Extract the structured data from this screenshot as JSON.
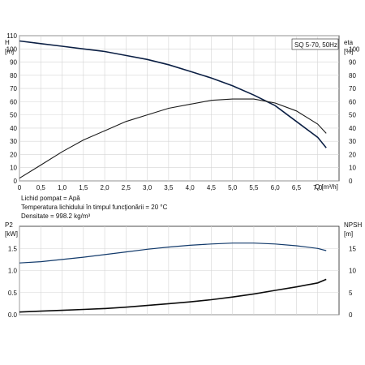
{
  "chart_data": [
    {
      "type": "line",
      "title": "SQ 5-70, 50Hz",
      "xlabel": "Q [m³/h]",
      "ylabel_left": [
        "H",
        "[m]"
      ],
      "ylabel_right": [
        "eta",
        "[%]"
      ],
      "xlim": [
        0,
        7.5
      ],
      "ylim_left": [
        0,
        110
      ],
      "ylim_right": [
        0,
        110
      ],
      "x_ticks": [
        "0",
        "0,5",
        "1,0",
        "1,5",
        "2,0",
        "2,5",
        "3,0",
        "3,5",
        "4,0",
        "4,5",
        "5,0",
        "5,5",
        "6,0",
        "6,5",
        "7,0"
      ],
      "y_ticks_left": [
        "0",
        "10",
        "20",
        "30",
        "40",
        "50",
        "60",
        "70",
        "80",
        "90",
        "100",
        "110"
      ],
      "y_ticks_right": [
        "0",
        "10",
        "20",
        "30",
        "40",
        "50",
        "60",
        "70",
        "80",
        "90",
        "100"
      ],
      "grid": true,
      "series": [
        {
          "name": "H",
          "axis": "left",
          "x": [
            0,
            0.5,
            1,
            1.5,
            2,
            2.5,
            3,
            3.5,
            4,
            4.5,
            5,
            5.5,
            6,
            6.5,
            7,
            7.2
          ],
          "values": [
            106,
            104,
            102,
            100,
            98,
            95,
            92,
            88,
            83,
            78,
            72,
            65,
            57,
            45,
            33,
            25
          ]
        },
        {
          "name": "eta",
          "axis": "right",
          "x": [
            0,
            0.5,
            1,
            1.5,
            2,
            2.5,
            3,
            3.5,
            4,
            4.5,
            5,
            5.5,
            6,
            6.5,
            7,
            7.2
          ],
          "values": [
            2,
            12,
            22,
            31,
            38,
            45,
            50,
            55,
            58,
            61,
            62,
            62,
            59,
            53,
            43,
            36
          ]
        }
      ],
      "notes": [
        "Lichid pompat = Apă",
        "Temperatura lichidului în timpul funcţionării = 20 °C",
        "Densitate = 998.2 kg/m³"
      ]
    },
    {
      "type": "line",
      "xlabel": "",
      "ylabel_left": [
        "P2",
        "[kW]"
      ],
      "ylabel_right": [
        "NPSH",
        "[m]"
      ],
      "xlim": [
        0,
        7.5
      ],
      "ylim_left": [
        0,
        2.0
      ],
      "ylim_right": [
        0,
        20
      ],
      "y_ticks_left": [
        "0.0",
        "0.5",
        "1.0",
        "1.5"
      ],
      "y_ticks_right": [
        "0",
        "5",
        "10",
        "15"
      ],
      "grid": true,
      "series": [
        {
          "name": "P2",
          "axis": "left",
          "x": [
            0,
            0.5,
            1,
            1.5,
            2,
            2.5,
            3,
            3.5,
            4,
            4.5,
            5,
            5.5,
            6,
            6.5,
            7,
            7.2
          ],
          "values": [
            1.17,
            1.2,
            1.25,
            1.3,
            1.36,
            1.42,
            1.48,
            1.53,
            1.57,
            1.6,
            1.62,
            1.62,
            1.6,
            1.56,
            1.5,
            1.45
          ]
        },
        {
          "name": "NPSH",
          "axis": "right",
          "x": [
            0,
            0.5,
            1,
            1.5,
            2,
            2.5,
            3,
            3.5,
            4,
            4.5,
            5,
            5.5,
            6,
            6.5,
            7,
            7.2
          ],
          "values": [
            0.6,
            0.8,
            1.0,
            1.2,
            1.4,
            1.7,
            2.1,
            2.5,
            2.9,
            3.4,
            4.0,
            4.7,
            5.5,
            6.3,
            7.2,
            8.0
          ]
        }
      ]
    }
  ]
}
